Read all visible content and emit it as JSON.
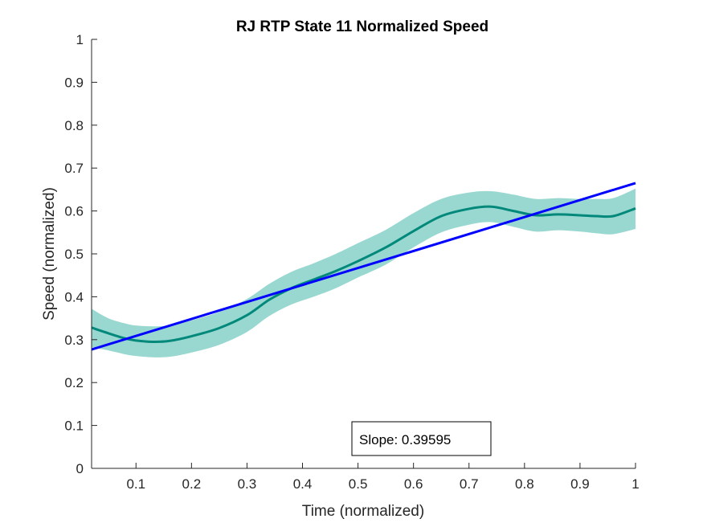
{
  "chart_data": {
    "type": "line",
    "title": "RJ  RTP State 11 Normalized Speed",
    "xlabel": "Time (normalized)",
    "ylabel": "Speed (normalized)",
    "xlim": [
      0.02,
      1.0
    ],
    "ylim": [
      0,
      1
    ],
    "xticks": [
      0.1,
      0.2,
      0.3,
      0.4,
      0.5,
      0.6,
      0.7,
      0.8,
      0.9,
      1
    ],
    "xtick_labels": [
      "0.1",
      "0.2",
      "0.3",
      "0.4",
      "0.5",
      "0.6",
      "0.7",
      "0.8",
      "0.9",
      "1"
    ],
    "yticks": [
      0,
      0.1,
      0.2,
      0.3,
      0.4,
      0.5,
      0.6,
      0.7,
      0.8,
      0.9,
      1
    ],
    "ytick_labels": [
      "0",
      "0.1",
      "0.2",
      "0.3",
      "0.4",
      "0.5",
      "0.6",
      "0.7",
      "0.8",
      "0.9",
      "1"
    ],
    "grid": false,
    "colors": {
      "mean": "#00897b",
      "band": "#99d8d0",
      "fit": "#0000ff",
      "axis": "#262626"
    },
    "mean": {
      "x": [
        0.02,
        0.05,
        0.08,
        0.1,
        0.13,
        0.16,
        0.2,
        0.25,
        0.3,
        0.34,
        0.38,
        0.42,
        0.46,
        0.5,
        0.55,
        0.6,
        0.65,
        0.7,
        0.74,
        0.78,
        0.82,
        0.86,
        0.9,
        0.93,
        0.96,
        1.0
      ],
      "y": [
        0.328,
        0.315,
        0.303,
        0.298,
        0.295,
        0.297,
        0.308,
        0.327,
        0.357,
        0.393,
        0.42,
        0.44,
        0.46,
        0.483,
        0.515,
        0.553,
        0.588,
        0.605,
        0.61,
        0.6,
        0.59,
        0.592,
        0.59,
        0.588,
        0.588,
        0.606
      ]
    },
    "band": {
      "upper": [
        0.372,
        0.35,
        0.338,
        0.333,
        0.331,
        0.333,
        0.345,
        0.365,
        0.395,
        0.43,
        0.458,
        0.478,
        0.5,
        0.525,
        0.556,
        0.595,
        0.628,
        0.643,
        0.646,
        0.638,
        0.628,
        0.63,
        0.628,
        0.628,
        0.63,
        0.652
      ],
      "lower": [
        0.282,
        0.275,
        0.266,
        0.262,
        0.259,
        0.26,
        0.27,
        0.288,
        0.318,
        0.355,
        0.382,
        0.4,
        0.42,
        0.445,
        0.475,
        0.515,
        0.55,
        0.568,
        0.574,
        0.563,
        0.552,
        0.555,
        0.552,
        0.548,
        0.546,
        0.558
      ]
    },
    "fit": {
      "x": [
        0.02,
        1.0
      ],
      "y": [
        0.277,
        0.665
      ]
    },
    "annotation": {
      "slope_text": "Slope: 0.39595"
    }
  }
}
